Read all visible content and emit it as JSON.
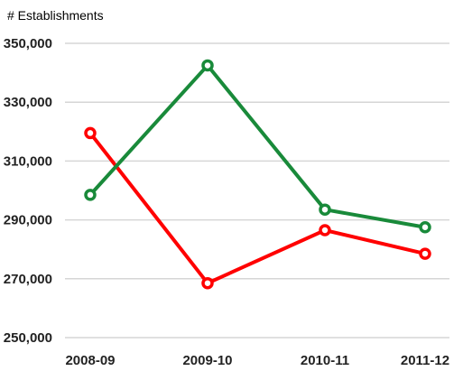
{
  "chart_data": {
    "type": "line",
    "title": "",
    "xlabel": "",
    "ylabel": "# Establishments",
    "categories": [
      "2008-09",
      "2009-10",
      "2010-11",
      "2011-12"
    ],
    "ylim": [
      250000,
      350000
    ],
    "yticks": [
      250000,
      270000,
      290000,
      310000,
      330000,
      350000
    ],
    "ytick_labels": [
      "250,000",
      "270,000",
      "290,000",
      "310,000",
      "330,000",
      "350,000"
    ],
    "grid": true,
    "legend": "none",
    "series": [
      {
        "color": "#ff0000",
        "values": [
          319500,
          268500,
          286500,
          278500
        ]
      },
      {
        "color": "#198a3a",
        "values": [
          298500,
          342500,
          293500,
          287500
        ]
      }
    ]
  }
}
